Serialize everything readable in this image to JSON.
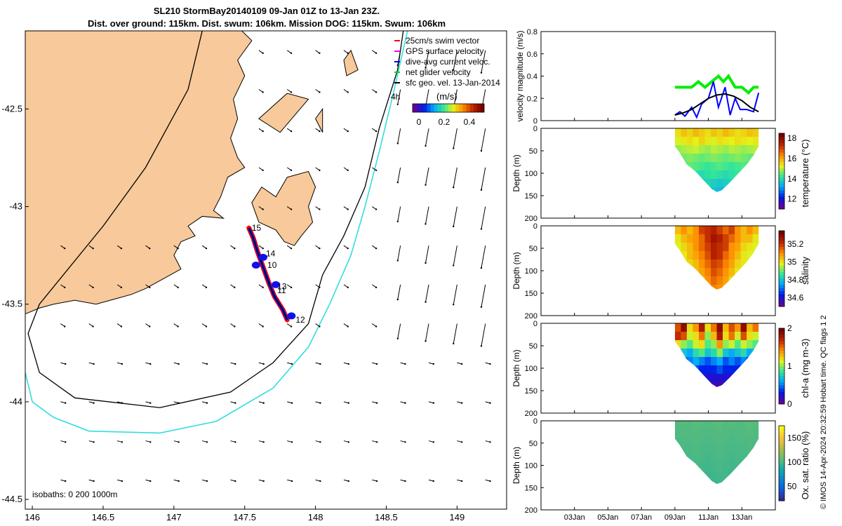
{
  "header": {
    "title_line1": "SL210 StormBay20140109 09-Jan 01Z to 13-Jan 23Z.",
    "title_line2": "Dist. over ground: 115km. Dist. swum: 106km. Mission DOG: 115km. Swum: 106km"
  },
  "copyright": "© IMOS 14-Apr-2024 20:32:59 Hobart time. QC flags 1  2",
  "chart_data": [
    {
      "type": "map",
      "name": "track-map",
      "xlim": [
        145.95,
        149.35
      ],
      "ylim": [
        -44.55,
        -42.1
      ],
      "x_ticks": [
        146,
        146.5,
        147,
        147.5,
        148,
        148.5,
        149
      ],
      "x_tick_labels": [
        "146",
        "146.5",
        "147",
        "147.5",
        "148",
        "148.5",
        "149"
      ],
      "y_ticks": [
        -42.5,
        -43,
        -43.5,
        -44,
        -44.5
      ],
      "y_tick_labels": [
        "-42.5",
        "-43",
        "-43.5",
        "-44",
        "-44.5"
      ],
      "land_color": "#f8c99a",
      "legend": {
        "entries": [
          {
            "label": "25cm/s swim vector",
            "color": "#ff0000"
          },
          {
            "label": "GPS surface velocity",
            "color": "#ff00ff"
          },
          {
            "label": "dive-avg current veloc.",
            "color": "#0000ff"
          },
          {
            "label": "net glider velocity",
            "color": "#00dd00"
          },
          {
            "label": "sfc geo. vel. 13-Jan-2014",
            "color": "#000000"
          }
        ],
        "scale_label": "4h",
        "colorbar_title": "(m/s)",
        "colorbar_ticks": [
          "0",
          "0.2",
          "0.4"
        ]
      },
      "isobath_label": "isobaths: 0   200  1000m",
      "isobath_colors": {
        "200": "#000000",
        "1000": "#33dddd"
      },
      "isobath_200": [
        [
          147.2,
          -42.1
        ],
        [
          147.1,
          -42.4
        ],
        [
          146.95,
          -42.6
        ],
        [
          146.8,
          -42.8
        ],
        [
          146.5,
          -43.1
        ],
        [
          146.05,
          -43.5
        ],
        [
          145.97,
          -43.65
        ],
        [
          146.05,
          -43.85
        ],
        [
          146.3,
          -43.98
        ],
        [
          146.9,
          -44.03
        ],
        [
          147.4,
          -43.95
        ],
        [
          147.7,
          -43.8
        ],
        [
          147.95,
          -43.6
        ],
        [
          148.05,
          -43.35
        ],
        [
          148.2,
          -43.15
        ],
        [
          148.35,
          -42.9
        ],
        [
          148.45,
          -42.6
        ],
        [
          148.58,
          -42.3
        ],
        [
          148.62,
          -42.1
        ]
      ],
      "isobath_1000": [
        [
          145.95,
          -43.85
        ],
        [
          146.0,
          -44.0
        ],
        [
          146.15,
          -44.08
        ],
        [
          146.4,
          -44.15
        ],
        [
          146.9,
          -44.16
        ],
        [
          147.3,
          -44.1
        ],
        [
          147.7,
          -43.93
        ],
        [
          147.95,
          -43.72
        ],
        [
          148.1,
          -43.5
        ],
        [
          148.25,
          -43.25
        ],
        [
          148.35,
          -43.0
        ],
        [
          148.45,
          -42.72
        ],
        [
          148.55,
          -42.42
        ],
        [
          148.65,
          -42.1
        ]
      ],
      "track": [
        [
          147.53,
          -43.11
        ],
        [
          147.56,
          -43.16
        ],
        [
          147.59,
          -43.23
        ],
        [
          147.62,
          -43.29
        ],
        [
          147.64,
          -43.33
        ],
        [
          147.67,
          -43.39
        ],
        [
          147.71,
          -43.46
        ],
        [
          147.77,
          -43.53
        ],
        [
          147.8,
          -43.58
        ]
      ],
      "track_labels": [
        {
          "text": "15",
          "lon": 147.55,
          "lat": -43.11
        },
        {
          "text": "14",
          "lon": 147.65,
          "lat": -43.24
        },
        {
          "text": "10",
          "lon": 147.66,
          "lat": -43.3
        },
        {
          "text": "13",
          "lon": 147.73,
          "lat": -43.41
        },
        {
          "text": "11",
          "lon": 147.73,
          "lat": -43.43
        },
        {
          "text": "12",
          "lon": 147.86,
          "lat": -43.58
        }
      ]
    },
    {
      "type": "line",
      "name": "velocity-magnitude",
      "ylabel": "velocity magnitude (m/s)",
      "ylim": [
        0,
        0.8
      ],
      "y_ticks": [
        "0",
        "0.2",
        "0.4",
        "0.6",
        "0.8"
      ],
      "xlim_days": [
        1,
        15
      ],
      "series": [
        {
          "color": "#00ee00",
          "values": [
            [
              9.0,
              0.3
            ],
            [
              9.3,
              0.3
            ],
            [
              9.6,
              0.3
            ],
            [
              10.0,
              0.3
            ],
            [
              10.4,
              0.35
            ],
            [
              10.8,
              0.3
            ],
            [
              11.2,
              0.35
            ],
            [
              11.6,
              0.4
            ],
            [
              11.9,
              0.35
            ],
            [
              12.2,
              0.4
            ],
            [
              12.6,
              0.3
            ],
            [
              13.0,
              0.3
            ],
            [
              13.4,
              0.25
            ],
            [
              13.7,
              0.3
            ],
            [
              14.0,
              0.3
            ]
          ]
        },
        {
          "color": "#0000ff",
          "values": [
            [
              9.0,
              0.05
            ],
            [
              9.3,
              0.08
            ],
            [
              9.6,
              0.04
            ],
            [
              10.0,
              0.12
            ],
            [
              10.3,
              0.03
            ],
            [
              10.6,
              0.15
            ],
            [
              11.0,
              0.2
            ],
            [
              11.3,
              0.35
            ],
            [
              11.6,
              0.12
            ],
            [
              12.0,
              0.3
            ],
            [
              12.3,
              0.05
            ],
            [
              12.6,
              0.2
            ],
            [
              12.9,
              0.1
            ],
            [
              13.3,
              0.1
            ],
            [
              13.7,
              0.08
            ],
            [
              14.0,
              0.25
            ]
          ]
        },
        {
          "color": "#000000",
          "values": [
            [
              9.0,
              0.05
            ],
            [
              9.5,
              0.07
            ],
            [
              10.0,
              0.1
            ],
            [
              10.5,
              0.15
            ],
            [
              11.0,
              0.2
            ],
            [
              11.5,
              0.23
            ],
            [
              12.0,
              0.24
            ],
            [
              12.5,
              0.22
            ],
            [
              13.0,
              0.18
            ],
            [
              13.5,
              0.12
            ],
            [
              14.0,
              0.08
            ]
          ]
        }
      ]
    },
    {
      "type": "heatmap",
      "name": "temperature-section",
      "ylabel": "Depth (m)",
      "colorbar_label": "temperature (°C)",
      "colorbar_ticks": [
        "12",
        "14",
        "16",
        "18"
      ],
      "y_ticks": [
        "0",
        "50",
        "100",
        "150",
        "200"
      ],
      "ylim": [
        0,
        200
      ],
      "clim": [
        11,
        18.5
      ],
      "rows": [
        [
          15.5,
          15.8,
          15.6,
          15.9,
          15.7,
          15.5,
          15.8,
          15.6,
          15.9,
          15.7,
          15.5,
          15.6,
          15.8,
          15.7
        ],
        [
          15.2,
          15.4,
          15.5,
          15.3,
          15.6,
          15.4,
          15.2,
          15.5,
          15.4,
          15.3,
          15.5,
          15.4,
          15.3,
          15.4
        ],
        [
          14.8,
          14.9,
          15.0,
          15.1,
          14.9,
          14.8,
          15.0,
          14.9,
          14.8,
          15.0,
          14.9,
          14.8,
          14.9,
          15.0
        ],
        [
          14.5,
          14.6,
          14.7,
          14.6,
          14.5,
          14.6,
          14.7,
          14.6,
          14.5,
          14.6,
          14.7,
          14.6,
          14.5,
          14.6
        ],
        [
          14.3,
          14.4,
          14.5,
          14.4,
          14.3,
          14.2,
          14.3,
          14.4,
          14.3,
          14.2,
          14.3,
          14.4,
          14.3,
          14.4
        ],
        [
          14.0,
          14.1,
          14.2,
          14.1,
          14.0,
          14.1,
          14.2,
          14.1,
          14.0,
          14.1,
          14.2,
          14.1,
          14.0,
          14.1
        ],
        [
          13.8,
          13.9,
          13.8,
          13.7,
          13.8,
          13.9,
          13.8,
          13.7,
          13.8,
          13.9,
          13.8,
          13.7,
          13.8,
          13.9
        ],
        [
          13.6,
          13.7,
          13.6,
          13.5,
          13.6,
          13.7,
          13.6,
          13.5,
          13.6,
          13.7,
          13.6,
          13.5,
          13.6,
          13.7
        ]
      ]
    },
    {
      "type": "heatmap",
      "name": "salinity-section",
      "ylabel": "Depth (m)",
      "colorbar_label": "salinity",
      "colorbar_ticks": [
        "34.6",
        "34.8",
        "35",
        "35.2"
      ],
      "y_ticks": [
        "0",
        "50",
        "100",
        "150",
        "200"
      ],
      "ylim": [
        0,
        200
      ],
      "clim": [
        34.5,
        35.35
      ],
      "rows": [
        [
          35.05,
          35.1,
          35.05,
          35.1,
          35.2,
          35.22,
          35.25,
          35.2,
          35.15,
          35.2,
          35.1,
          35.05,
          35.1,
          35.05
        ],
        [
          35.0,
          35.05,
          35.08,
          35.1,
          35.15,
          35.22,
          35.28,
          35.25,
          35.2,
          35.15,
          35.1,
          35.05,
          35.05,
          35.0
        ],
        [
          34.98,
          35.02,
          35.05,
          35.1,
          35.15,
          35.2,
          35.25,
          35.22,
          35.2,
          35.1,
          35.08,
          35.02,
          35.0,
          34.98
        ],
        [
          34.98,
          35.0,
          35.05,
          35.08,
          35.12,
          35.18,
          35.25,
          35.22,
          35.15,
          35.1,
          35.05,
          35.0,
          34.98,
          34.98
        ],
        [
          34.98,
          35.0,
          35.02,
          35.05,
          35.1,
          35.15,
          35.2,
          35.18,
          35.12,
          35.08,
          35.02,
          35.0,
          34.98,
          34.98
        ],
        [
          34.98,
          35.0,
          35.0,
          35.05,
          35.08,
          35.12,
          35.18,
          35.15,
          35.1,
          35.05,
          35.0,
          34.98,
          34.98,
          34.98
        ],
        [
          34.98,
          34.98,
          35.0,
          35.02,
          35.05,
          35.1,
          35.15,
          35.12,
          35.08,
          35.02,
          35.0,
          34.98,
          34.98,
          34.98
        ],
        [
          34.98,
          34.98,
          35.0,
          35.0,
          35.02,
          35.08,
          35.12,
          35.1,
          35.05,
          35.0,
          34.98,
          34.98,
          34.98,
          34.98
        ]
      ]
    },
    {
      "type": "heatmap",
      "name": "chla-section",
      "ylabel": "Depth (m)",
      "colorbar_label": "chl-a (mg m-3)",
      "colorbar_ticks": [
        "0",
        "1",
        "2"
      ],
      "y_ticks": [
        "0",
        "50",
        "100",
        "150",
        "200"
      ],
      "ylim": [
        0,
        200
      ],
      "clim": [
        0,
        2
      ],
      "rows": [
        [
          1.6,
          1.9,
          1.2,
          1.4,
          1.8,
          1.2,
          1.5,
          1.9,
          1.3,
          1.6,
          1.4,
          1.9,
          1.3,
          1.5
        ],
        [
          1.7,
          1.6,
          1.1,
          1.2,
          1.5,
          1.0,
          1.3,
          1.8,
          1.2,
          1.5,
          1.1,
          1.6,
          1.2,
          1.1
        ],
        [
          1.2,
          1.0,
          0.9,
          1.1,
          1.2,
          0.9,
          1.0,
          1.4,
          1.0,
          1.1,
          0.9,
          1.1,
          1.0,
          0.9
        ],
        [
          0.8,
          0.7,
          0.6,
          0.8,
          0.9,
          0.7,
          0.8,
          1.0,
          0.7,
          0.6,
          0.7,
          0.8,
          0.6,
          0.7
        ],
        [
          0.5,
          0.4,
          0.5,
          0.6,
          0.5,
          0.4,
          0.5,
          0.6,
          0.4,
          0.5,
          0.4,
          0.5,
          0.4,
          0.5
        ],
        [
          0.3,
          0.3,
          0.3,
          0.4,
          0.3,
          0.3,
          0.3,
          0.4,
          0.3,
          0.3,
          0.3,
          0.3,
          0.3,
          0.3
        ],
        [
          0.2,
          0.2,
          0.2,
          0.2,
          0.2,
          0.2,
          0.2,
          0.2,
          0.2,
          0.2,
          0.2,
          0.2,
          0.2,
          0.2
        ],
        [
          0.1,
          0.1,
          0.1,
          0.1,
          0.1,
          0.1,
          0.1,
          0.1,
          0.1,
          0.1,
          0.1,
          0.1,
          0.1,
          0.1
        ]
      ]
    },
    {
      "type": "heatmap",
      "name": "oxygen-section",
      "ylabel": "Depth (m)",
      "colorbar_label": "Ox. sat. ratio (%)",
      "colorbar_ticks": [
        "50",
        "100",
        "150"
      ],
      "y_ticks": [
        "0",
        "50",
        "100",
        "150",
        "200"
      ],
      "ylim": [
        0,
        200
      ],
      "clim": [
        20,
        175
      ],
      "rows": [
        [
          103,
          104,
          103,
          105,
          104,
          103,
          104,
          105,
          103,
          104,
          103,
          104,
          105,
          104
        ],
        [
          102,
          103,
          103,
          104,
          103,
          102,
          103,
          104,
          103,
          102,
          103,
          103,
          104,
          103
        ],
        [
          101,
          102,
          102,
          103,
          102,
          101,
          102,
          103,
          102,
          101,
          102,
          102,
          103,
          102
        ],
        [
          100,
          101,
          101,
          102,
          101,
          100,
          101,
          102,
          101,
          100,
          101,
          101,
          102,
          101
        ],
        [
          99,
          100,
          100,
          101,
          100,
          99,
          100,
          101,
          100,
          99,
          100,
          100,
          101,
          100
        ],
        [
          98,
          99,
          99,
          100,
          99,
          98,
          99,
          100,
          99,
          98,
          99,
          99,
          100,
          99
        ],
        [
          97,
          98,
          98,
          99,
          98,
          97,
          98,
          99,
          98,
          97,
          98,
          98,
          99,
          98
        ],
        [
          96,
          97,
          97,
          98,
          97,
          96,
          97,
          98,
          97,
          96,
          97,
          97,
          98,
          97
        ]
      ]
    }
  ],
  "time_axis": {
    "ticks": [
      3,
      5,
      7,
      9,
      11,
      13
    ],
    "labels": [
      "03Jan",
      "05Jan",
      "07Jan",
      "09Jan",
      "11Jan",
      "13Jan"
    ],
    "data_start_day": 9.0,
    "data_end_day": 14.0
  },
  "bathymetry_profile": [
    [
      9.0,
      40
    ],
    [
      9.3,
      55
    ],
    [
      9.7,
      80
    ],
    [
      10.2,
      95
    ],
    [
      10.7,
      115
    ],
    [
      11.2,
      135
    ],
    [
      11.5,
      142
    ],
    [
      11.8,
      138
    ],
    [
      12.3,
      120
    ],
    [
      12.8,
      100
    ],
    [
      13.3,
      80
    ],
    [
      13.7,
      60
    ],
    [
      14.0,
      40
    ]
  ]
}
